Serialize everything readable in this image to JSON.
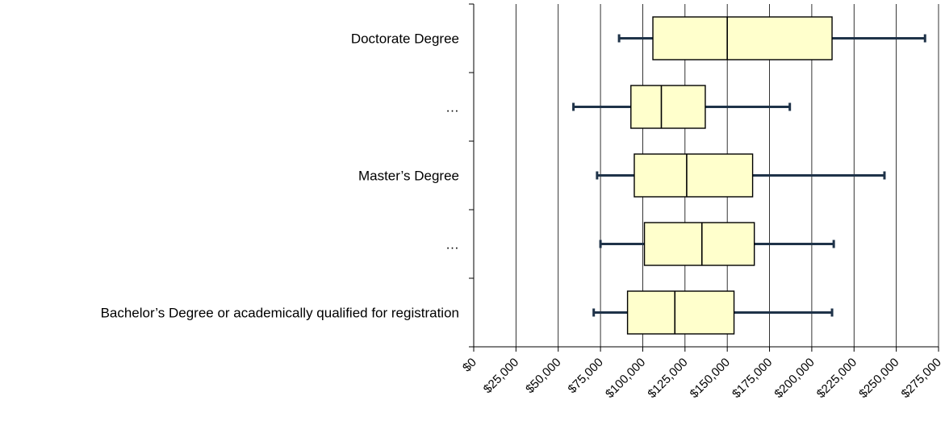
{
  "chart_data": {
    "type": "box",
    "orientation": "horizontal",
    "title": "",
    "xlabel": "",
    "ylabel": "",
    "xlim": [
      0,
      275000
    ],
    "grid": "vertical",
    "colors": {
      "box_fill": "#FFFFCC",
      "box_stroke": "#000000",
      "whisker": "#1F3349",
      "grid": "#000000"
    },
    "x_ticks": [
      "$0",
      "$25,000",
      "$50,000",
      "$75,000",
      "$100,000",
      "$125,000",
      "$150,000",
      "$175,000",
      "$200,000",
      "$225,000",
      "$250,000",
      "$275,000"
    ],
    "x_tick_values": [
      0,
      25000,
      50000,
      75000,
      100000,
      125000,
      150000,
      175000,
      200000,
      225000,
      250000,
      275000
    ],
    "categories": [
      "Doctorate Degree",
      "…",
      "Master’s Degree",
      "…",
      "Bachelor’s Degree or academically qualified for registration"
    ],
    "boxes": [
      {
        "min": 86000,
        "q1": 106000,
        "median": 150000,
        "q3": 212000,
        "max": 267000
      },
      {
        "min": 59000,
        "q1": 93000,
        "median": 111000,
        "q3": 137000,
        "max": 187000
      },
      {
        "min": 73000,
        "q1": 95000,
        "median": 126000,
        "q3": 165000,
        "max": 243000
      },
      {
        "min": 75000,
        "q1": 101000,
        "median": 135000,
        "q3": 166000,
        "max": 213000
      },
      {
        "min": 71000,
        "q1": 91000,
        "median": 119000,
        "q3": 154000,
        "max": 212000
      }
    ]
  }
}
